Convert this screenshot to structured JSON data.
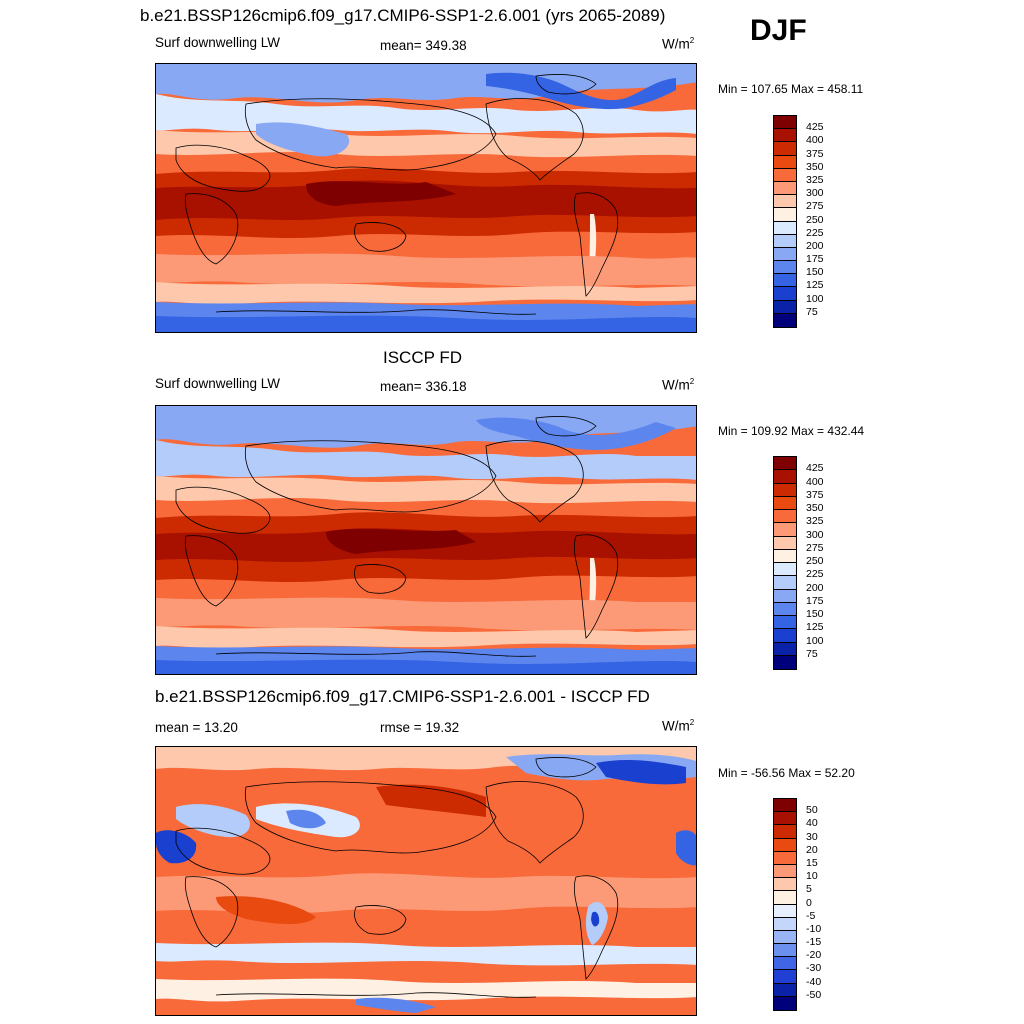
{
  "season": "DJF",
  "panels": [
    {
      "title": "b.e21.BSSP126cmip6.f09_g17.CMIP6-SSP1-2.6.001 (yrs 2065-2089)",
      "left_label": "Surf downwelling LW",
      "center_label": "mean= 349.38",
      "units": "W/m",
      "units_exp": "2",
      "minmax": "Min = 107.65 Max = 458.11",
      "colorbar_labels": [
        "425",
        "400",
        "375",
        "350",
        "325",
        "300",
        "275",
        "250",
        "225",
        "200",
        "175",
        "150",
        "125",
        "100",
        "75"
      ]
    },
    {
      "title": "ISCCP FD",
      "left_label": "Surf downwelling LW",
      "center_label": "mean= 336.18",
      "units": "W/m",
      "units_exp": "2",
      "minmax": "Min = 109.92 Max = 432.44",
      "colorbar_labels": [
        "425",
        "400",
        "375",
        "350",
        "325",
        "300",
        "275",
        "250",
        "225",
        "200",
        "175",
        "150",
        "125",
        "100",
        "75"
      ]
    },
    {
      "title": "b.e21.BSSP126cmip6.f09_g17.CMIP6-SSP1-2.6.001 - ISCCP FD",
      "left_label": "mean =  13.20",
      "center_label": "rmse =  19.32",
      "units": "W/m",
      "units_exp": "2",
      "minmax": "Min = -56.56 Max =  52.20",
      "colorbar_labels": [
        "50",
        "40",
        "30",
        "20",
        "15",
        "10",
        "5",
        "0",
        "-5",
        "-10",
        "-15",
        "-20",
        "-30",
        "-40",
        "-50"
      ]
    }
  ],
  "colors": {
    "abs_scale": [
      "#7f0000",
      "#a81000",
      "#cc2a00",
      "#e84a10",
      "#f86a3a",
      "#fc9a78",
      "#fdc8ac",
      "#fff0e4",
      "#dceaff",
      "#b4ccfa",
      "#88a8f4",
      "#5c86ee",
      "#3464e4",
      "#1a40d0",
      "#0a22a8",
      "#00007a"
    ],
    "diff_scale": [
      "#7f0000",
      "#a81000",
      "#cc2a00",
      "#e84a10",
      "#f86a3a",
      "#fc9a78",
      "#fdc8ac",
      "#fff0e4",
      "#e8f0ff",
      "#c4d6fa",
      "#98b4f4",
      "#6c90ee",
      "#4066e6",
      "#2040d4",
      "#0a22a8",
      "#00007a"
    ]
  }
}
